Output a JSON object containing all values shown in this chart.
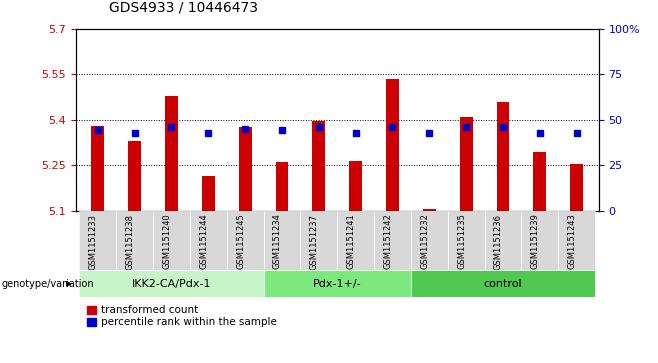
{
  "title": "GDS4933 / 10446473",
  "samples": [
    "GSM1151233",
    "GSM1151238",
    "GSM1151240",
    "GSM1151244",
    "GSM1151245",
    "GSM1151234",
    "GSM1151237",
    "GSM1151241",
    "GSM1151242",
    "GSM1151232",
    "GSM1151235",
    "GSM1151236",
    "GSM1151239",
    "GSM1151243"
  ],
  "bar_bottom": 5.1,
  "bar_tops": [
    5.38,
    5.33,
    5.48,
    5.215,
    5.375,
    5.26,
    5.395,
    5.265,
    5.535,
    5.105,
    5.41,
    5.46,
    5.295,
    5.255
  ],
  "blue_y": [
    5.365,
    5.355,
    5.375,
    5.355,
    5.37,
    5.365,
    5.375,
    5.355,
    5.375,
    5.355,
    5.375,
    5.375,
    5.355,
    5.355
  ],
  "groups": [
    {
      "label": "IKK2-CA/Pdx-1",
      "start": 0,
      "end": 5,
      "color": "#c8f5c8"
    },
    {
      "label": "Pdx-1+/-",
      "start": 5,
      "end": 9,
      "color": "#7de87d"
    },
    {
      "label": "control",
      "start": 9,
      "end": 14,
      "color": "#50c850"
    }
  ],
  "ylim": [
    5.1,
    5.7
  ],
  "yticks": [
    5.1,
    5.25,
    5.4,
    5.55,
    5.7
  ],
  "ytick_labels": [
    "5.1",
    "5.25",
    "5.4",
    "5.55",
    "5.7"
  ],
  "right_yticks": [
    0,
    25,
    50,
    75,
    100
  ],
  "right_ytick_labels": [
    "0",
    "25",
    "50",
    "75",
    "100%"
  ],
  "bar_color": "#cc0000",
  "blue_color": "#0000cc",
  "bg_color": "#d8d8d8",
  "plot_bg": "#ffffff",
  "left_label_color": "#cc0000",
  "right_label_color": "#0000cc",
  "genotype_label": "genotype/variation",
  "legend_items": [
    "transformed count",
    "percentile rank within the sample"
  ],
  "title_fontsize": 10,
  "bar_width": 0.35
}
